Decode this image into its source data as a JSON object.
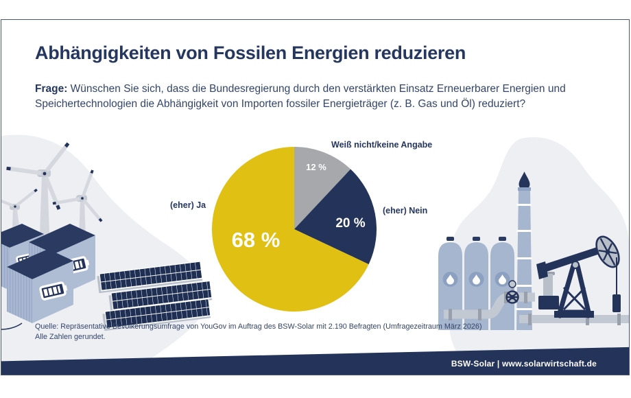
{
  "header": {
    "title": "Abhängigkeiten von Fossilen Energien reduzieren",
    "question_label": "Frage:",
    "question_line1": " Wünschen Sie sich, dass die Bundesregierung durch den verstärkten Einsatz Erneuerbarer Energien und",
    "question_line2": "Speichertechnologien die Abhängigkeit von Importen fossiler Energieträger (z. B. Gas und Öl) reduziert?"
  },
  "chart_data": {
    "type": "pie",
    "title": "",
    "start_angle_deg": 0,
    "direction": "clockwise",
    "slices": [
      {
        "label": "Weiß nicht/keine Angabe",
        "value": 12,
        "display": "12 %",
        "color": "#a6a8ab"
      },
      {
        "label": "(eher) Nein",
        "value": 20,
        "display": "20 %",
        "color": "#24335a"
      },
      {
        "label": "(eher) Ja",
        "value": 68,
        "display": "68 %",
        "color": "#dfc013"
      }
    ]
  },
  "footnote": {
    "line1": "Quelle: Repräsentative Bevölkerungsumfrage von YouGov im Auftrag des BSW-Solar mit 2.190 Befragten (Umfragezeitraum März 2026)",
    "line2": "Alle Zahlen gerundet."
  },
  "footer": {
    "text": "BSW-Solar | www.solarwirtschaft.de"
  },
  "colors": {
    "accent_yellow": "#dfc013",
    "navy": "#24335a",
    "gray": "#a6a8ab",
    "blob_gray": "#edeff3",
    "illustration_blue": "#a7b6cf"
  },
  "illustrations": {
    "left": "wind-turbines, battery storage containers, solar panels",
    "right": "oil/gas storage tanks, flare stack with flame, pipeline valve, oil pump jack"
  }
}
